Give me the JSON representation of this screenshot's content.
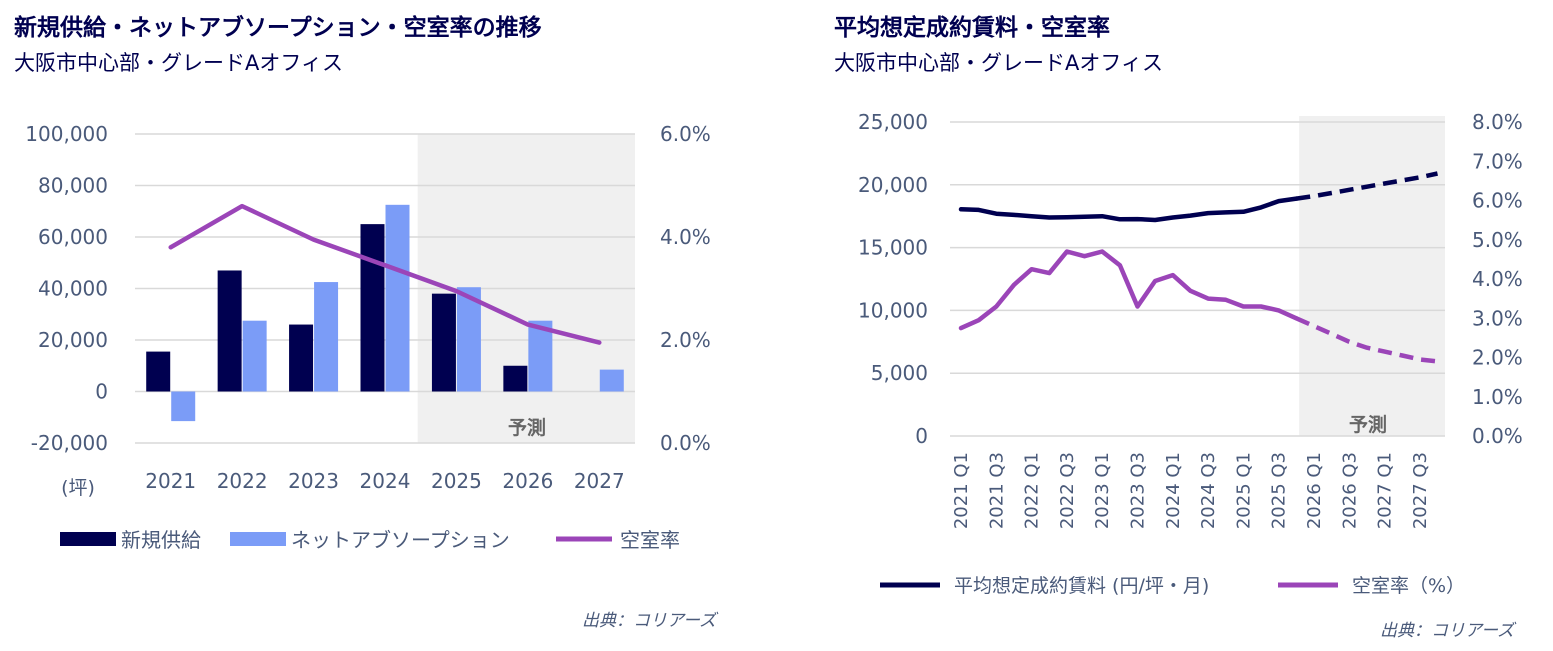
{
  "colors": {
    "navy": "#000050",
    "light_blue": "#7b9cf7",
    "purple": "#9b45b8",
    "forecast_bg": "#f0f0f0",
    "grid": "#d9d9d9",
    "axis_text": "#4a5a7a"
  },
  "left": {
    "title": "新規供給・ネットアブソープション・空室率の推移",
    "subtitle": "大阪市中心部・グレードAオフィス",
    "source": "出典：コリアーズ",
    "forecast_label": "予測",
    "unit_label": "(坪)",
    "legend": [
      "新規供給",
      "ネットアブソープション",
      "空室率"
    ]
  },
  "right": {
    "title": "平均想定成約賃料・空室率",
    "subtitle": "大阪市中心部・グレードAオフィス",
    "source": "出典：コリアーズ",
    "forecast_label": "予測",
    "legend": [
      "平均想定成約賃料 (円/坪・月)",
      "空室率（%）"
    ]
  },
  "chart_data": [
    {
      "type": "bar",
      "title": "新規供給・ネットアブソープション・空室率の推移",
      "categories": [
        "2021",
        "2022",
        "2023",
        "2024",
        "2025",
        "2026",
        "2027"
      ],
      "forecast_start_index": 4,
      "series": [
        {
          "name": "新規供給",
          "axis": "left",
          "values": [
            15500,
            47000,
            26000,
            65000,
            38000,
            10000,
            0
          ]
        },
        {
          "name": "ネットアブソープション",
          "axis": "left",
          "values": [
            -11500,
            27500,
            42500,
            72500,
            40500,
            27500,
            8500
          ]
        },
        {
          "name": "空室率",
          "type": "line",
          "axis": "right",
          "values": [
            3.8,
            4.6,
            3.95,
            3.45,
            2.95,
            2.3,
            1.95
          ]
        }
      ],
      "y_left": {
        "min": -20000,
        "max": 100000,
        "ticks": [
          "-20,000",
          "0",
          "20,000",
          "40,000",
          "60,000",
          "80,000",
          "100,000"
        ]
      },
      "y_right": {
        "min": 0,
        "max": 6,
        "ticks": [
          "0.0%",
          "2.0%",
          "4.0%",
          "6.0%"
        ]
      },
      "ylabel": "(坪)"
    },
    {
      "type": "line",
      "title": "平均想定成約賃料・空室率",
      "categories": [
        "2021 Q1",
        "2021 Q2",
        "2021 Q3",
        "2021 Q4",
        "2022 Q1",
        "2022 Q2",
        "2022 Q3",
        "2022 Q4",
        "2023 Q1",
        "2023 Q2",
        "2023 Q3",
        "2023 Q4",
        "2024 Q1",
        "2024 Q2",
        "2024 Q3",
        "2024 Q4",
        "2025 Q1",
        "2025 Q2",
        "2025 Q3",
        "2025 Q4",
        "2026 Q1",
        "2026 Q2",
        "2026 Q3",
        "2026 Q4",
        "2027 Q1",
        "2027 Q2",
        "2027 Q3",
        "2027 Q4"
      ],
      "tick_labels": [
        "2021 Q1",
        "2021 Q3",
        "2022 Q1",
        "2022 Q3",
        "2023 Q1",
        "2023 Q3",
        "2024 Q1",
        "2024 Q3",
        "2025 Q1",
        "2025 Q3",
        "2026 Q1",
        "2026 Q3",
        "2027 Q1",
        "2027 Q3"
      ],
      "forecast_start_index": 20,
      "series": [
        {
          "name": "平均想定成約賃料 (円/坪・月)",
          "axis": "left",
          "values": [
            18050,
            18000,
            17700,
            17600,
            17500,
            17400,
            17420,
            17450,
            17500,
            17250,
            17270,
            17200,
            17400,
            17550,
            17750,
            17800,
            17850,
            18200,
            18700,
            18900,
            19100,
            19350,
            19600,
            19850,
            20100,
            20350,
            20600,
            20900
          ]
        },
        {
          "name": "空室率（%）",
          "axis": "right",
          "values": [
            2.75,
            2.95,
            3.3,
            3.85,
            4.25,
            4.15,
            4.7,
            4.58,
            4.7,
            4.35,
            3.3,
            3.95,
            4.1,
            3.7,
            3.5,
            3.47,
            3.3,
            3.3,
            3.2,
            3.0,
            2.8,
            2.6,
            2.4,
            2.25,
            2.15,
            2.05,
            1.95,
            1.9
          ]
        }
      ],
      "y_left": {
        "min": 0,
        "max": 25000,
        "ticks": [
          "0",
          "5,000",
          "10,000",
          "15,000",
          "20,000",
          "25,000"
        ]
      },
      "y_right": {
        "min": 0,
        "max": 8,
        "ticks": [
          "0.0%",
          "1.0%",
          "2.0%",
          "3.0%",
          "4.0%",
          "5.0%",
          "6.0%",
          "7.0%",
          "8.0%"
        ]
      }
    }
  ]
}
